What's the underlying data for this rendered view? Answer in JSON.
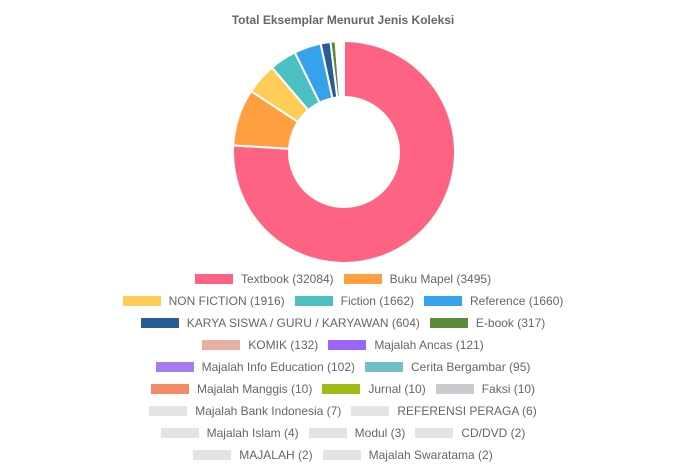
{
  "chart_data": {
    "type": "pie",
    "variant": "doughnut",
    "title": "Total Eksemplar Menurut Jenis Koleksi",
    "legend_position": "bottom",
    "slices": [
      {
        "label": "Textbook (32084)",
        "value": 32084,
        "color": "#ff6384"
      },
      {
        "label": "Buku Mapel (3495)",
        "value": 3495,
        "color": "#ff9f40"
      },
      {
        "label": "NON FICTION (1916)",
        "value": 1916,
        "color": "#ffcd56"
      },
      {
        "label": "Fiction (1662)",
        "value": 1662,
        "color": "#4bc0c0"
      },
      {
        "label": "Reference (1660)",
        "value": 1660,
        "color": "#36a2eb"
      },
      {
        "label": "KARYA SISWA / GURU / KARYAWAN (604)",
        "value": 604,
        "color": "#2b5c9a"
      },
      {
        "label": "E-book (317)",
        "value": 317,
        "color": "#5b8c39"
      },
      {
        "label": "KOMIK (132)",
        "value": 132,
        "color": "#e6b0a5"
      },
      {
        "label": "Majalah Ancas (121)",
        "value": 121,
        "color": "#9966ff"
      },
      {
        "label": "Majalah Info Education (102)",
        "value": 102,
        "color": "#a67cf0"
      },
      {
        "label": "Cerita Bergambar (95)",
        "value": 95,
        "color": "#6fbfc4"
      },
      {
        "label": "Majalah Manggis (10)",
        "value": 10,
        "color": "#f58a66"
      },
      {
        "label": "Jurnal (10)",
        "value": 10,
        "color": "#a0b914"
      },
      {
        "label": "Faksi (10)",
        "value": 10,
        "color": "#c9cbcf"
      },
      {
        "label": "Majalah Bank Indonesia (7)",
        "value": 7,
        "color": "#e4e4e4"
      },
      {
        "label": "REFERENSI PERAGA (6)",
        "value": 6,
        "color": "#e4e4e4"
      },
      {
        "label": "Majalah Islam (4)",
        "value": 4,
        "color": "#e4e4e4"
      },
      {
        "label": "Modul (3)",
        "value": 3,
        "color": "#e4e4e4"
      },
      {
        "label": "CD/DVD (2)",
        "value": 2,
        "color": "#e4e4e4"
      },
      {
        "label": "MAJALAH (2)",
        "value": 2,
        "color": "#e4e4e4"
      },
      {
        "label": "Majalah Swaratama (2)",
        "value": 2,
        "color": "#e4e4e4"
      }
    ]
  }
}
